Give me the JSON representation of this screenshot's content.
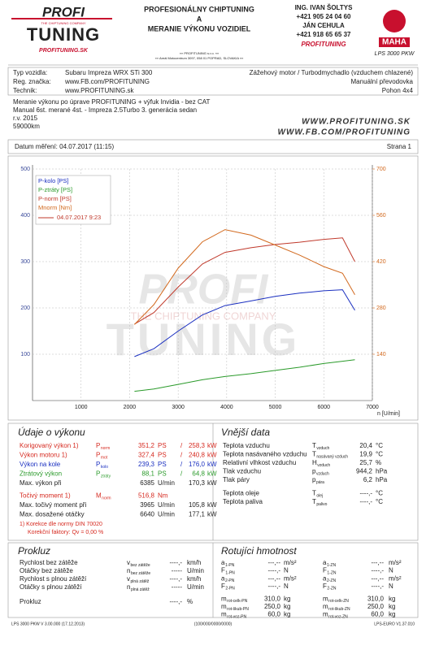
{
  "header": {
    "logo_top": "PROFI",
    "logo_bottom": "TUNING",
    "logo_tagline": "THE CHIPTUNING COMPANY",
    "logo_site": "PROFITUNING.SK",
    "title_lines": [
      "PROFESIONÁLNY CHIPTUNING",
      "A",
      "MERANIE VÝKONU VOZIDIEL"
    ],
    "address_lines": [
      "»» PROFITUNING s.r.o. ««",
      "»» Areál Motocentrum 3097, 058 01 POPRAD, SLOVAKIA ««"
    ],
    "contacts": [
      "ING. IVAN ŠOLTYS",
      "+421 905 24 04 60",
      "JÁN CEHULA",
      "+421 918 65 65 37"
    ],
    "brand": "PROFITUNING",
    "maha": "MAHA",
    "model": "LPS 3000 PKW"
  },
  "vehicle": {
    "rows": [
      [
        "Typ vozidla:",
        "Subaru Impreza WRX STi 300"
      ],
      [
        "Reg. značka:",
        "www.FB.com/PROFITUNING"
      ],
      [
        "Technik:",
        "www.PROFITUNING.sk"
      ]
    ],
    "right": [
      "Zážehový motor / Turbodmychadlo (vzduchem chlazené)",
      "Manuální převodovka",
      "Pohon 4x4"
    ]
  },
  "notes": [
    "Meranie výkonu po úprave PROFITUNING + výfuk Invidia - bez CAT",
    "Manual 6st. merané 4st. - Impreza 2.5Turbo 3. generácia sedan",
    "r.v. 2015",
    "59000km"
  ],
  "watermark": [
    "WWW.PROFITUNING.SK",
    "WWW.FB.COM/PROFITUNING"
  ],
  "measurement": {
    "date": "Datum měření: 04.07.2017 (11:15)",
    "page": "Strana 1"
  },
  "chart_data": {
    "type": "line",
    "x_label": "n [U/min]",
    "legend_date": "04.07.2017 9:23",
    "xlim": [
      0,
      7000
    ],
    "xticks": [
      1000,
      2000,
      3000,
      4000,
      5000,
      6000,
      7000
    ],
    "ylim": [
      0,
      500
    ],
    "yticks": [
      100,
      200,
      300,
      400,
      500
    ],
    "y2lim": [
      0,
      700
    ],
    "y2ticks": [
      140,
      280,
      420,
      560,
      700
    ],
    "ycolor": "#3a4a9a",
    "y2color": "#d2691e",
    "grid": true,
    "x": [
      2100,
      2500,
      3000,
      3500,
      3965,
      4500,
      5000,
      5500,
      6000,
      6385,
      6640
    ],
    "series": [
      {
        "name": "P-kolo [PS]",
        "color": "#1a2fc0",
        "values": [
          95,
          112,
          150,
          185,
          205,
          215,
          225,
          232,
          237,
          239.3,
          195
        ]
      },
      {
        "name": "P-ztráty [PS]",
        "color": "#2a9a2a",
        "values": [
          20,
          25,
          35,
          45,
          52,
          58,
          65,
          72,
          80,
          85,
          88.1
        ]
      },
      {
        "name": "P-norm [PS]",
        "color": "#c0392b",
        "values": [
          165,
          190,
          245,
          295,
          320,
          330,
          337,
          342,
          348,
          351.2,
          300
        ]
      },
      {
        "name": "Mnorm [Nm]",
        "color": "#d2691e",
        "axis": "y2",
        "values": [
          230,
          290,
          400,
          480,
          516.8,
          500,
          470,
          440,
          405,
          385,
          320
        ]
      }
    ]
  },
  "performance": {
    "title": "Údaje o výkonu",
    "rows": [
      {
        "label": "Korigovaný výkon 1)",
        "color": "#d62a20",
        "sym": "P",
        "sub": "norm",
        "v1": "351,2",
        "u1": "PS",
        "sep": "/",
        "v2": "258,3",
        "u2": "kW"
      },
      {
        "label": "Výkon motoru 1)",
        "color": "#d62a20",
        "sym": "P",
        "sub": "mot",
        "v1": "327,4",
        "u1": "PS",
        "sep": "/",
        "v2": "240,8",
        "u2": "kW"
      },
      {
        "label": "Výkon na kole",
        "color": "#1a2fc0",
        "sym": "P",
        "sub": "kolo",
        "v1": "239,3",
        "u1": "PS",
        "sep": "/",
        "v2": "176,0",
        "u2": "kW"
      },
      {
        "label": "Ztrátový výkon",
        "color": "#2a9a2a",
        "sym": "P",
        "sub": "ztráty",
        "v1": "88,1",
        "u1": "PS",
        "sep": "/",
        "v2": "64,8",
        "u2": "kW"
      },
      {
        "label": "Max. výkon při",
        "color": "#222222",
        "v1": "6385",
        "u1": "U/min",
        "v2": "170,3",
        "u2": "kW"
      },
      {
        "label": "Točivý moment 1)",
        "color": "#d62a20",
        "sym": "M",
        "sub": "norm",
        "v1": "516,8",
        "u1": "Nm"
      },
      {
        "label": "Max. točivý moment při",
        "color": "#222222",
        "v1": "3965",
        "u1": "U/min",
        "v2": "105,8",
        "u2": "kW"
      },
      {
        "label": "Max. dosažené otáčky",
        "color": "#222222",
        "v1": "6640",
        "u1": "U/min",
        "v2": "177,1",
        "u2": "kW"
      }
    ],
    "note": "1) Korekce dle normy DIN 70020",
    "factor": "Korekční faktory: Qv =  0,00 %"
  },
  "external": {
    "title": "Vnější data",
    "rows": [
      {
        "label": "Teplota vzduchu",
        "sym": "T",
        "sub": "vzduch",
        "value": "20,4",
        "unit": "°C"
      },
      {
        "label": "Teplota nasávaného vzduchu",
        "sym": "T",
        "sub": "nasávaný vzduch",
        "value": "19,9",
        "unit": "°C"
      },
      {
        "label": "Relativní vlhkost vzduchu",
        "sym": "H",
        "sub": "vzduch",
        "value": "25,7",
        "unit": "%"
      },
      {
        "label": "Tlak vzduchu",
        "sym": "p",
        "sub": "vzduch",
        "value": "944,2",
        "unit": "hPa"
      },
      {
        "label": "Tlak páry",
        "sym": "p",
        "sub": "pára",
        "value": "6,2",
        "unit": "hPa"
      },
      {
        "label": "Teplota oleje",
        "sym": "T",
        "sub": "olej",
        "value": "----,-",
        "unit": "°C"
      },
      {
        "label": "Teplota paliva",
        "sym": "T",
        "sub": "palivo",
        "value": "----,-",
        "unit": "°C"
      }
    ]
  },
  "slip": {
    "title": "Prokluz",
    "rows": [
      {
        "label": "Rychlost bez zátěže",
        "sym": "v",
        "sub": "bez zátěže",
        "value": "----,-",
        "unit": "km/h"
      },
      {
        "label": "Otáčky bez zátěže",
        "sym": "n",
        "sub": "bez zátěže",
        "value": "-----",
        "unit": "U/min"
      },
      {
        "label": "Rychlost s plnou zátěží",
        "sym": "v",
        "sub": "plná zátěž",
        "value": "----,-",
        "unit": "km/h"
      },
      {
        "label": "Otáčky s plnou zátěží",
        "sym": "n",
        "sub": "plná zátěž",
        "value": "-----",
        "unit": "U/min"
      },
      {
        "label": "Prokluz",
        "value": "----,-",
        "unit": "%"
      }
    ]
  },
  "rotating": {
    "title": "Rotujíci hmotnost",
    "rows": [
      [
        {
          "sym": "a",
          "sub": "1-PN",
          "value": "---,--",
          "unit": "m/s²"
        },
        {
          "sym": "a",
          "sub": "1-ZN",
          "value": "---,--",
          "unit": "m/s²"
        }
      ],
      [
        {
          "sym": "F",
          "sub": "1-PN",
          "value": "----,-",
          "unit": "N"
        },
        {
          "sym": "F",
          "sub": "1-ZN",
          "value": "----,-",
          "unit": "N"
        }
      ],
      [
        {
          "sym": "a",
          "sub": "2-PN",
          "value": "---,--",
          "unit": "m/s²"
        },
        {
          "sym": "a",
          "sub": "2-ZN",
          "value": "---,--",
          "unit": "m/s²"
        }
      ],
      [
        {
          "sym": "F",
          "sub": "2-PN",
          "value": "----,-",
          "unit": "N"
        },
        {
          "sym": "F",
          "sub": "2-ZN",
          "value": "----,-",
          "unit": "N"
        }
      ],
      [
        {
          "sym": "m",
          "sub": "rot-celk-PN",
          "value": "310,0",
          "unit": "kg"
        },
        {
          "sym": "m",
          "sub": "rot-celk-ZN",
          "value": "310,0",
          "unit": "kg"
        }
      ],
      [
        {
          "sym": "m",
          "sub": "rot-škub-PN",
          "value": "250,0",
          "unit": "kg"
        },
        {
          "sym": "m",
          "sub": "rot-škub-ZN",
          "value": "250,0",
          "unit": "kg"
        }
      ],
      [
        {
          "sym": "m",
          "sub": "rot-voz-PN",
          "value": "60,0",
          "unit": "kg"
        },
        {
          "sym": "m",
          "sub": "rot-voz-ZN",
          "value": "60,0",
          "unit": "kg"
        }
      ]
    ]
  },
  "footer": [
    "LPS 3000 PKW V 3.00.000 (17.12.2013)",
    "(100/000/0000/0000)",
    "LPS-EURO V1.37.010"
  ]
}
